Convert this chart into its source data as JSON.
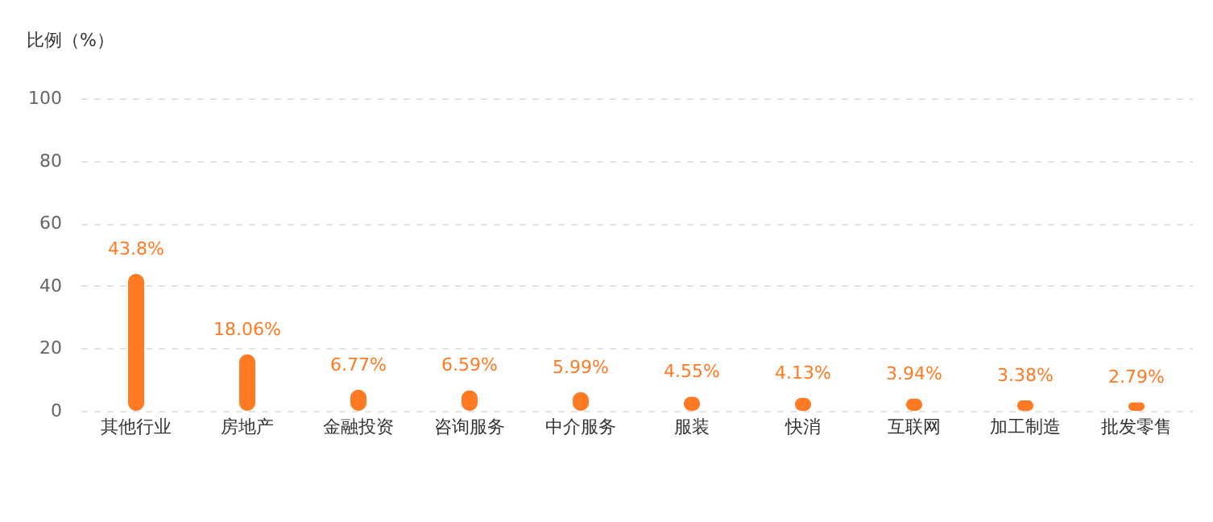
{
  "chart_data": {
    "type": "bar",
    "ylabel": "比例（%）",
    "categories": [
      "其他行业",
      "房地产",
      "金融投资",
      "咨询服务",
      "中介服务",
      "服装",
      "快消",
      "互联网",
      "加工制造",
      "批发零售"
    ],
    "series": [
      {
        "color": "#ff7a22",
        "values": [
          43.8,
          18.06,
          6.77,
          6.59,
          5.99,
          4.55,
          4.13,
          3.94,
          3.38,
          2.79
        ],
        "value_labels": [
          "43.8%",
          "18.06%",
          "6.77%",
          "6.59%",
          "5.99%",
          "4.55%",
          "4.13%",
          "3.94%",
          "3.38%",
          "2.79%"
        ]
      }
    ],
    "ylim": [
      0,
      100
    ],
    "yticks": [
      0,
      20,
      40,
      60,
      80,
      100
    ],
    "grid": "y"
  }
}
